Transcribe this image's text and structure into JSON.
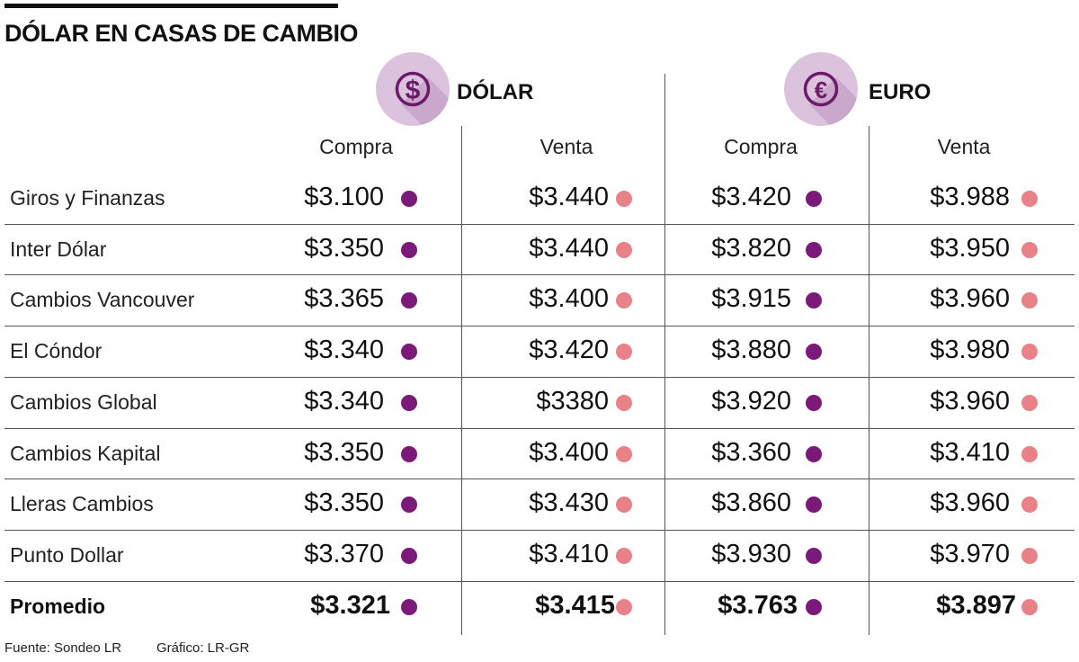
{
  "title": "DÓLAR EN CASAS DE CAMBIO",
  "colors": {
    "compra_dot": "#7c1a7a",
    "venta_dot": "#e88288",
    "badge_bg": "#dcc3dd",
    "badge_ring": "#6a1b68"
  },
  "currencies": [
    {
      "label": "DÓLAR",
      "icon": "dollar-coin-icon"
    },
    {
      "label": "EURO",
      "icon": "euro-coin-icon"
    }
  ],
  "columns": [
    "Compra",
    "Venta",
    "Compra",
    "Venta"
  ],
  "footer": {
    "source": "Fuente: Sondeo LR",
    "credit": "Gráfico: LR-GR"
  },
  "chart_data": {
    "type": "table",
    "title": "DÓLAR EN CASAS DE CAMBIO",
    "groups": [
      "DÓLAR",
      "EURO"
    ],
    "columns": [
      "Compra",
      "Venta",
      "Compra",
      "Venta"
    ],
    "rows": [
      {
        "name": "Giros y Finanzas",
        "values": [
          "$3.100",
          "$3.440",
          "$3.420",
          "$3.988"
        ]
      },
      {
        "name": "Inter Dólar",
        "values": [
          "$3.350",
          "$3.440",
          "$3.820",
          "$3.950"
        ]
      },
      {
        "name": "Cambios Vancouver",
        "values": [
          "$3.365",
          "$3.400",
          "$3.915",
          "$3.960"
        ]
      },
      {
        "name": "El Cóndor",
        "values": [
          "$3.340",
          "$3.420",
          "$3.880",
          "$3.980"
        ]
      },
      {
        "name": "Cambios Global",
        "values": [
          "$3.340",
          "$3380",
          "$3.920",
          "$3.960"
        ]
      },
      {
        "name": "Cambios Kapital",
        "values": [
          "$3.350",
          "$3.400",
          "$3.360",
          "$3.410"
        ]
      },
      {
        "name": "Lleras Cambios",
        "values": [
          "$3.350",
          "$3.430",
          "$3.860",
          "$3.960"
        ]
      },
      {
        "name": "Punto Dollar",
        "values": [
          "$3.370",
          "$3.410",
          "$3.930",
          "$3.970"
        ]
      },
      {
        "name": "Promedio",
        "values": [
          "$3.321",
          "$3.415",
          "$3.763",
          "$3.897"
        ],
        "bold": true
      }
    ]
  }
}
